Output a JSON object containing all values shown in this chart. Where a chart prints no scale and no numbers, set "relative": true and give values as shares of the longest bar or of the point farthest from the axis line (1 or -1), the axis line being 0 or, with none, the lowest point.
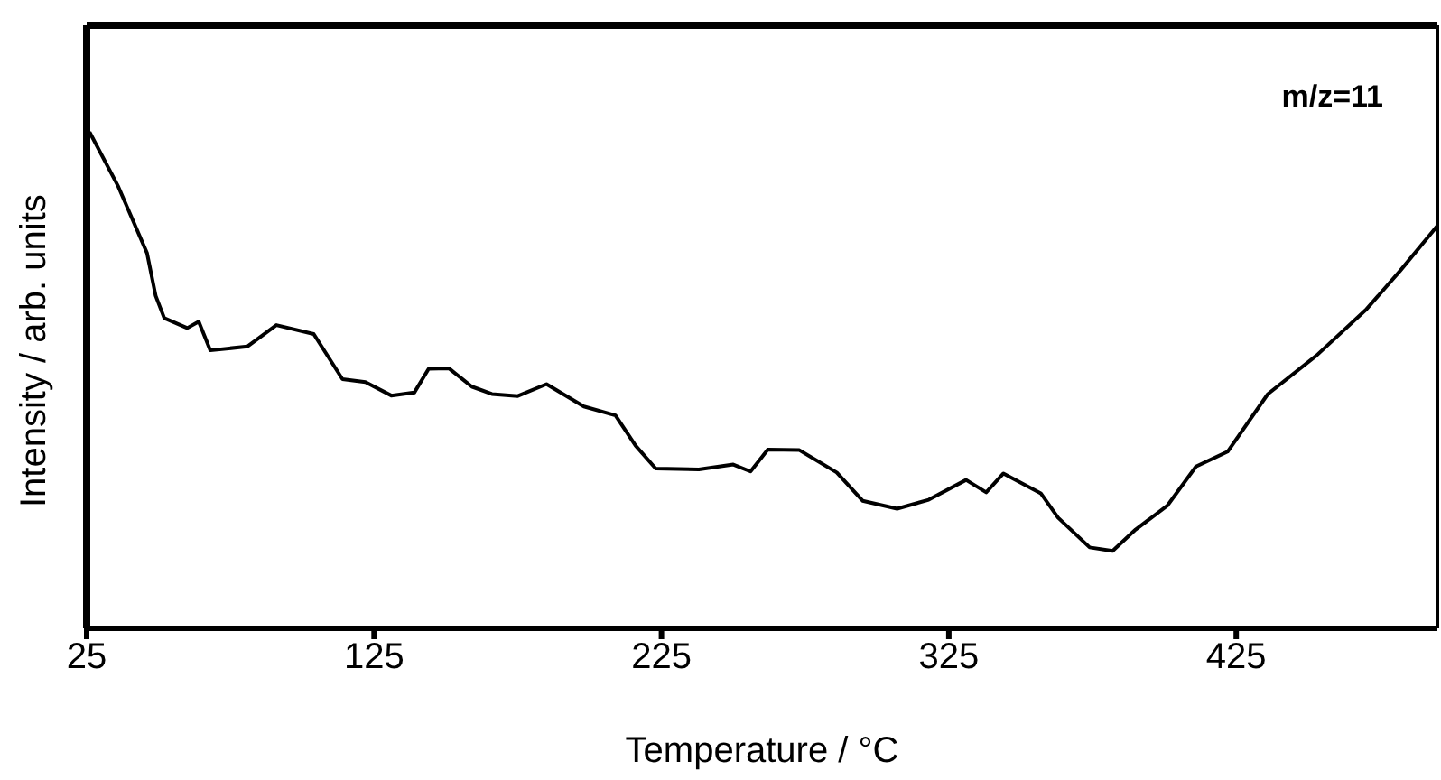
{
  "chart_data": {
    "type": "line",
    "xlabel": "Temperature / °C",
    "ylabel": "Intensity / arb. units",
    "annotations": [
      "m/z=11"
    ],
    "relative": true,
    "xlim": [
      25,
      495
    ],
    "xticks": [
      25,
      125,
      225,
      325,
      425
    ],
    "color": "#000000",
    "marker": "none",
    "line_style": "solid",
    "x": [
      26,
      36,
      46,
      49,
      52,
      60,
      64,
      68,
      81,
      91,
      104,
      114,
      122,
      131,
      139,
      144,
      151,
      159,
      166,
      175,
      185,
      198,
      209,
      216,
      223,
      238,
      250,
      256,
      262,
      273,
      286,
      295,
      307,
      318,
      331,
      338,
      344,
      357,
      363,
      374,
      382,
      390,
      401,
      411,
      422,
      436,
      453,
      470,
      482,
      495
    ],
    "values": [
      1.0,
      0.89,
      0.756,
      0.67,
      0.625,
      0.605,
      0.618,
      0.56,
      0.568,
      0.611,
      0.593,
      0.502,
      0.496,
      0.469,
      0.475,
      0.523,
      0.524,
      0.487,
      0.472,
      0.468,
      0.492,
      0.447,
      0.429,
      0.368,
      0.322,
      0.32,
      0.33,
      0.316,
      0.36,
      0.359,
      0.314,
      0.257,
      0.241,
      0.259,
      0.299,
      0.274,
      0.312,
      0.272,
      0.223,
      0.163,
      0.156,
      0.199,
      0.247,
      0.326,
      0.356,
      0.472,
      0.55,
      0.641,
      0.72,
      0.811
    ]
  }
}
